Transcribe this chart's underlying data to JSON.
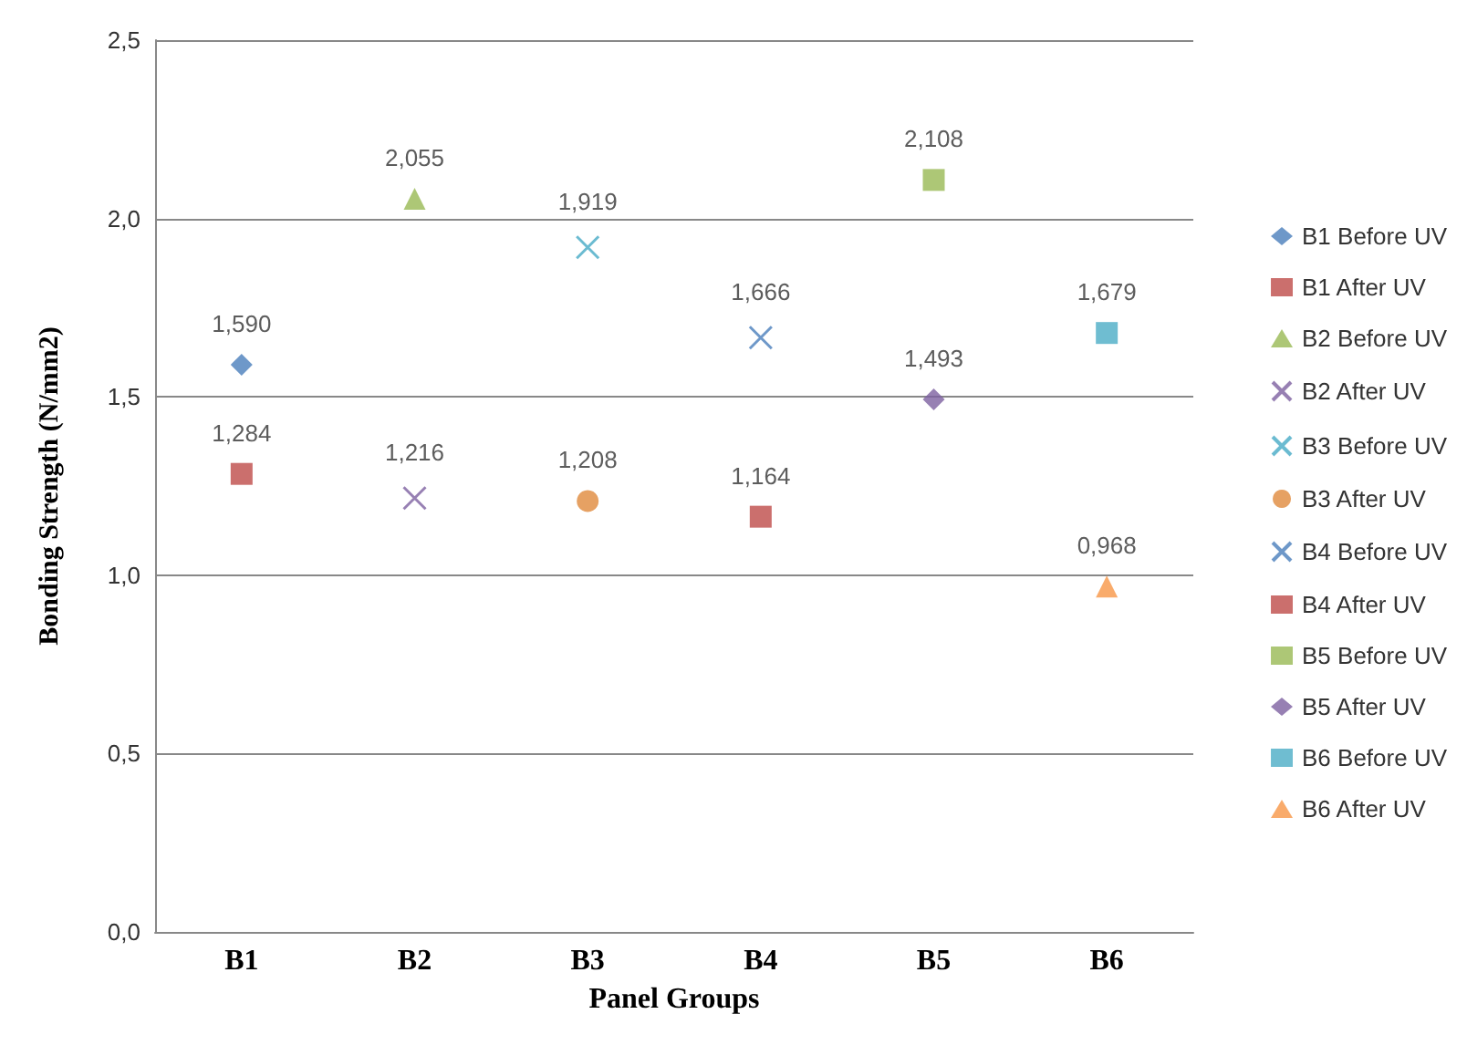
{
  "chart_data": {
    "type": "scatter",
    "xlabel": "Panel Groups",
    "ylabel": "Bonding Strength (N/mm2)",
    "categories": [
      "B1",
      "B2",
      "B3",
      "B4",
      "B5",
      "B6"
    ],
    "ylim": [
      0,
      2.5
    ],
    "yticks": [
      {
        "value": 0,
        "label": "0,0"
      },
      {
        "value": 0.5,
        "label": "0,5"
      },
      {
        "value": 1,
        "label": "1,0"
      },
      {
        "value": 1.5,
        "label": "1,5"
      },
      {
        "value": 2,
        "label": "2,0"
      },
      {
        "value": 2.5,
        "label": "2,5"
      }
    ],
    "grid": "y",
    "legend": "right",
    "series": [
      {
        "name": "B1 Before UV",
        "color": "#4a7ebb",
        "marker": "diamond",
        "x": [
          "B1"
        ],
        "values": [
          1.59
        ],
        "value_labels": [
          "1,590"
        ]
      },
      {
        "name": "B1 After UV",
        "color": "#be4b48",
        "marker": "square",
        "x": [
          "B1"
        ],
        "values": [
          1.284
        ],
        "value_labels": [
          "1,284"
        ]
      },
      {
        "name": "B2 Before UV",
        "color": "#98b954",
        "marker": "triangle",
        "x": [
          "B2"
        ],
        "values": [
          2.055
        ],
        "value_labels": [
          "2,055"
        ]
      },
      {
        "name": "B2 After UV",
        "color": "#7d60a0",
        "marker": "cross",
        "x": [
          "B2"
        ],
        "values": [
          1.216
        ],
        "value_labels": [
          "1,216"
        ]
      },
      {
        "name": "B3 Before UV",
        "color": "#46aac5",
        "marker": "cross",
        "x": [
          "B3"
        ],
        "values": [
          1.919
        ],
        "value_labels": [
          "1,919"
        ]
      },
      {
        "name": "B3 After UV",
        "color": "#e08a3c",
        "marker": "circle",
        "x": [
          "B3"
        ],
        "values": [
          1.208
        ],
        "value_labels": [
          "1,208"
        ]
      },
      {
        "name": "B4 Before UV",
        "color": "#4a7ebb",
        "marker": "cross",
        "x": [
          "B4"
        ],
        "values": [
          1.666
        ],
        "value_labels": [
          "1,666"
        ]
      },
      {
        "name": "B4 After UV",
        "color": "#be4b48",
        "marker": "square",
        "x": [
          "B4"
        ],
        "values": [
          1.164
        ],
        "value_labels": [
          "1,164"
        ]
      },
      {
        "name": "B5 Before UV",
        "color": "#98b954",
        "marker": "square",
        "x": [
          "B5"
        ],
        "values": [
          2.108
        ],
        "value_labels": [
          "2,108"
        ]
      },
      {
        "name": "B5 After UV",
        "color": "#7d60a0",
        "marker": "diamond",
        "x": [
          "B5"
        ],
        "values": [
          1.493
        ],
        "value_labels": [
          "1,493"
        ]
      },
      {
        "name": "B6 Before UV",
        "color": "#4bacc6",
        "marker": "square",
        "x": [
          "B6"
        ],
        "values": [
          1.679
        ],
        "value_labels": [
          "1,679"
        ]
      },
      {
        "name": "B6 After UV",
        "color": "#f79646",
        "marker": "triangle",
        "x": [
          "B6"
        ],
        "values": [
          0.968
        ],
        "value_labels": [
          "0,968"
        ]
      }
    ]
  }
}
